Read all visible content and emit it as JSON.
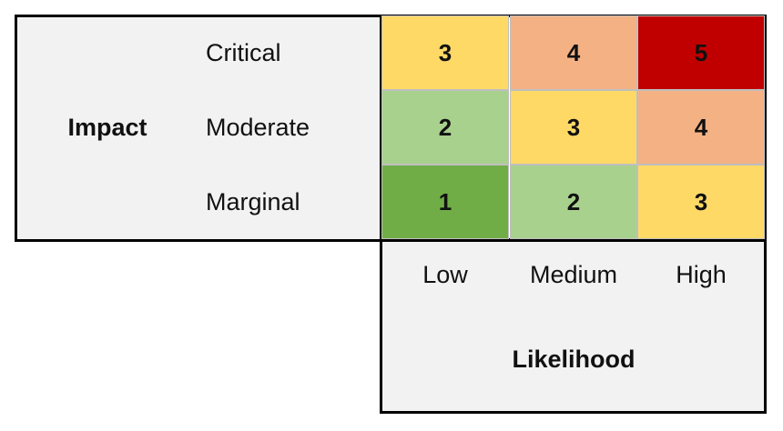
{
  "impact": {
    "label": "Impact",
    "levels": [
      "Critical",
      "Moderate",
      "Marginal"
    ]
  },
  "likelihood": {
    "label": "Likelihood",
    "levels": [
      "Low",
      "Medium",
      "High"
    ]
  },
  "matrix": {
    "rows": [
      [
        3,
        4,
        5
      ],
      [
        2,
        3,
        4
      ],
      [
        1,
        2,
        3
      ]
    ],
    "colors": [
      [
        "#ffd966",
        "#f4b183",
        "#c00000"
      ],
      [
        "#a9d18e",
        "#ffd966",
        "#f4b183"
      ],
      [
        "#70ad47",
        "#a9d18e",
        "#ffd966"
      ]
    ]
  }
}
